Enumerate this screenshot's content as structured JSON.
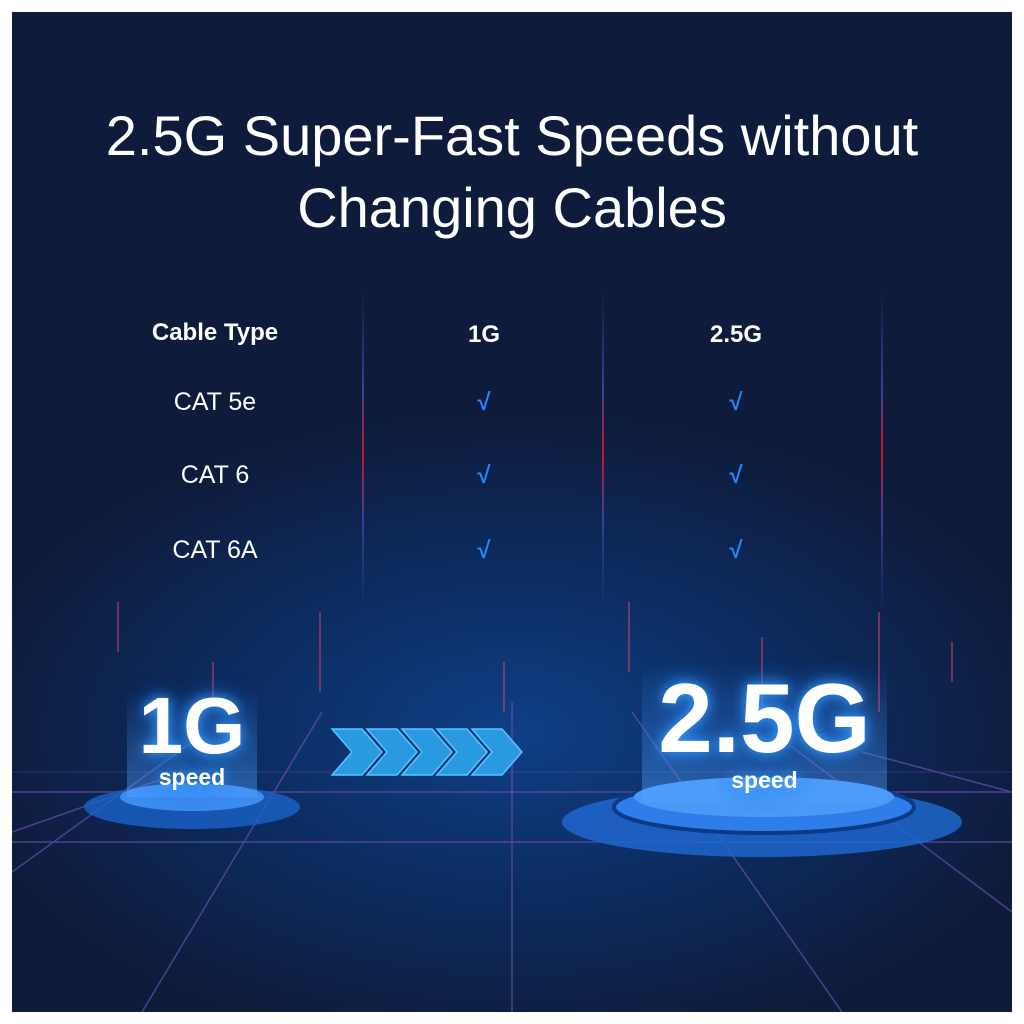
{
  "title_line1": "2.5G Super-Fast Speeds without",
  "title_line2": "Changing Cables",
  "table": {
    "headers": [
      "Cable Type",
      "1G",
      "2.5G"
    ],
    "rows": [
      {
        "cable": "CAT 5e",
        "g1": "√",
        "g25": "√"
      },
      {
        "cable": "CAT 6",
        "g1": "√",
        "g25": "√"
      },
      {
        "cable": "CAT 6A",
        "g1": "√",
        "g25": "√"
      }
    ]
  },
  "left_badge": {
    "value": "1G",
    "label": "speed"
  },
  "right_badge": {
    "value": "2.5G",
    "label": "speed"
  },
  "arrow_icon": "chevrons-right-icon",
  "colors": {
    "background": "#0f1a36",
    "check": "#1f86ff",
    "glow": "#3aa0ff"
  }
}
